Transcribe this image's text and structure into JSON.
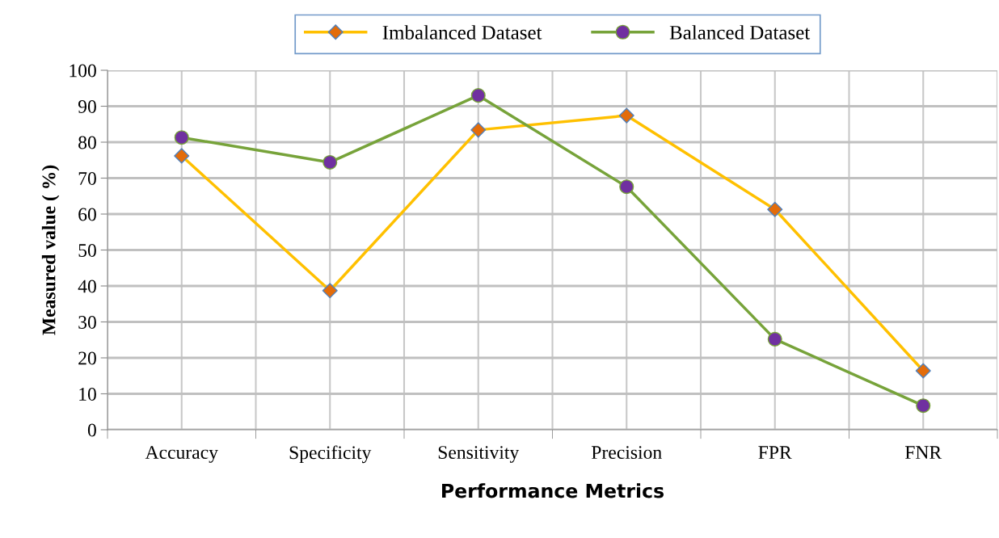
{
  "chart_data": {
    "type": "line",
    "xlabel": "Performance Metrics",
    "ylabel": "Measured value ( %)",
    "categories": [
      "Accuracy",
      "Specificity",
      "Sensitivity",
      "Precision",
      "FPR",
      "FNR"
    ],
    "series": [
      {
        "name": "Imbalanced Dataset",
        "color": "#ffc000",
        "marker": "diamond",
        "colors": [
          "#e36c0a",
          "#e36c0a",
          "#e36c0a",
          "#e36c0a",
          "#e36c0a",
          "#e36c0a"
        ],
        "values": [
          76.2,
          38.7,
          83.4,
          87.4,
          61.3,
          16.4
        ]
      },
      {
        "name": "Balanced Dataset",
        "color": "#77a33a",
        "marker": "circle",
        "colors": [
          "#7030a0",
          "#7030a0",
          "#7030a0",
          "#7030a0",
          "#7030a0",
          "#7030a0"
        ],
        "values": [
          81.3,
          74.4,
          93.0,
          67.6,
          25.2,
          6.7
        ]
      }
    ],
    "ylim": [
      0,
      100
    ],
    "yticks": [
      0,
      10,
      20,
      30,
      40,
      50,
      60,
      70,
      80,
      90,
      100
    ],
    "grid": true,
    "legend": "top",
    "line_style": "solid"
  }
}
